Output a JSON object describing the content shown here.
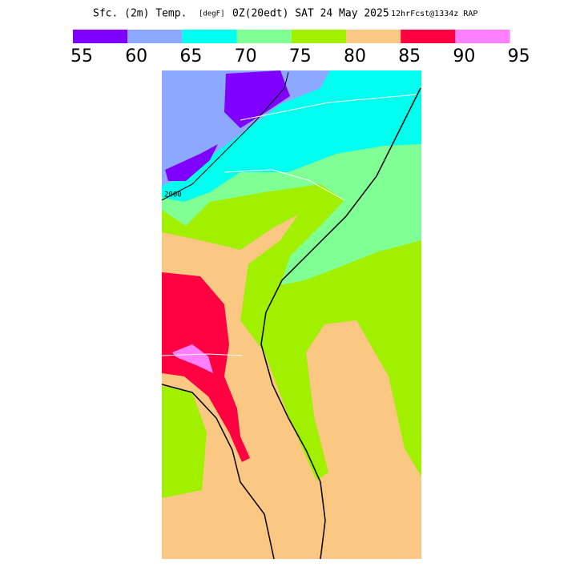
{
  "header": {
    "title": "Sfc. (2m) Temp.",
    "units": "[degF]",
    "time": "0Z(20edt) SAT 24 May 2025",
    "forecast": "12hrFcst@1334z RAP"
  },
  "legend": {
    "labels": [
      55,
      60,
      65,
      70,
      75,
      80,
      85,
      90,
      95
    ],
    "colors": [
      "#8000ff",
      "#8ca8ff",
      "#00ffee",
      "#80ff94",
      "#a0f000",
      "#fac882",
      "#ff0040",
      "#ff80ff"
    ]
  },
  "map": {
    "contour_label": "2000"
  }
}
